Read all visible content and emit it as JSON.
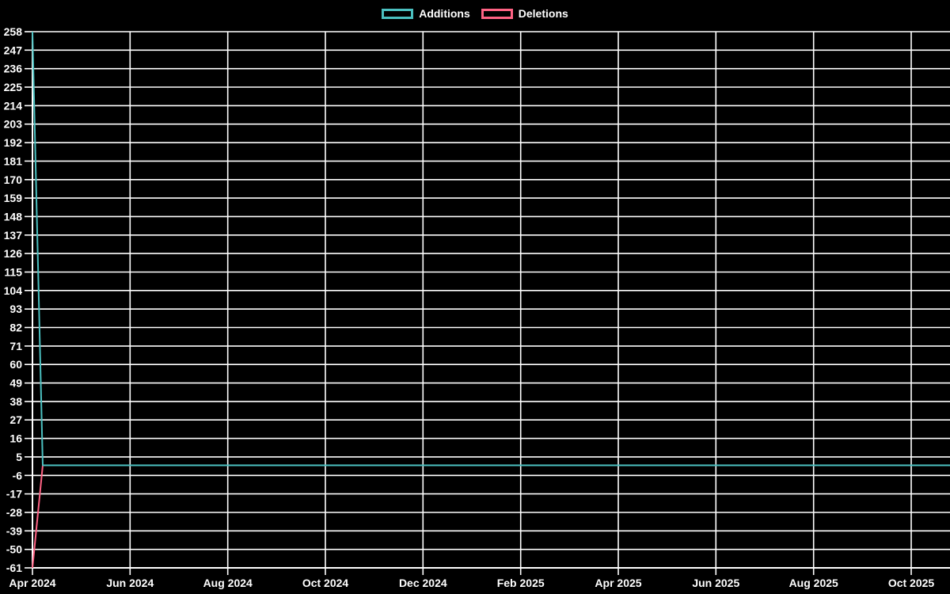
{
  "legend": {
    "position": "top",
    "items": [
      {
        "label": "Additions",
        "color": "#4bc0c0"
      },
      {
        "label": "Deletions",
        "color": "#ff6384"
      }
    ]
  },
  "chart_data": {
    "type": "line",
    "title": "",
    "background_color": "#000000",
    "grid": true,
    "grid_color": "#ffffff",
    "axis_color": "#ffffff",
    "text_color": "#ffffff",
    "legend_position": "top",
    "x_axis": {
      "label": "",
      "tick_labels": [
        "Apr 2024",
        "Jun 2024",
        "Aug 2024",
        "Oct 2024",
        "Dec 2024",
        "Feb 2025",
        "Apr 2025",
        "Jun 2025",
        "Aug 2025",
        "Oct 2025"
      ],
      "tick_months": [
        0,
        2,
        4,
        6,
        8,
        10,
        12,
        14,
        16,
        18
      ],
      "range_months": [
        0,
        18.8
      ]
    },
    "y_axis": {
      "label": "",
      "tick_values": [
        258,
        247,
        236,
        225,
        214,
        203,
        192,
        181,
        170,
        159,
        148,
        137,
        126,
        115,
        104,
        93,
        82,
        71,
        60,
        49,
        38,
        27,
        16,
        5,
        -6,
        -17,
        -28,
        -39,
        -50,
        -61
      ],
      "range": [
        -61,
        258
      ],
      "tick_step": 11
    },
    "series": [
      {
        "name": "Deletions",
        "color": "#ff6384",
        "points_x_months": [
          0,
          0.21,
          18.8
        ],
        "points_y": [
          -61,
          0,
          0
        ],
        "note": "deletions plotted as negative values"
      },
      {
        "name": "Additions",
        "color": "#4bc0c0",
        "points_x_months": [
          0,
          0.21,
          18.8
        ],
        "points_y": [
          258,
          0,
          0
        ]
      }
    ]
  }
}
